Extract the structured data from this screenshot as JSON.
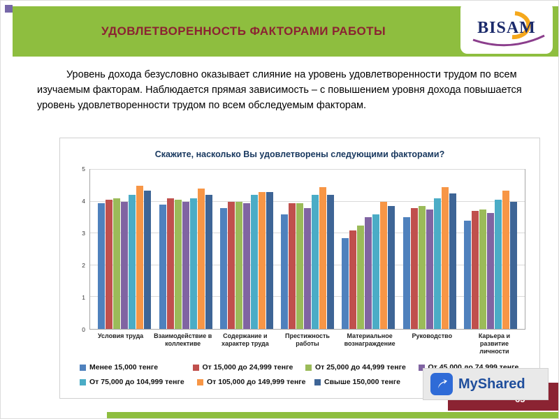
{
  "header": {
    "title": "УДОВЛЕТВОРЕННОСТЬ ФАКТОРАМИ РАБОТЫ",
    "logo_text": "BISAM",
    "bar_color": "#8EBE3F",
    "title_color": "#8B2332"
  },
  "intro": {
    "text": "Уровень дохода безусловно оказывает слияние на уровень удовлетворенности трудом по всем изучаемым факторам. Наблюдается прямая зависимость – с повышением уровня дохода повышается уровень удовлетворенности трудом по всем обследуемым факторам."
  },
  "chart_data": {
    "type": "bar",
    "title": "Скажите, насколько Вы удовлетворены следующими факторами?",
    "categories": [
      "Условия труда",
      "Взаимодействие в коллективе",
      "Содержание и характер труда",
      "Престижность работы",
      "Материальное вознаграждение",
      "Руководство",
      "Карьера и развитие личности"
    ],
    "series": [
      {
        "name": "Менее 15,000 тенге",
        "color": "#4F81BD",
        "values": [
          3.95,
          3.9,
          3.8,
          3.6,
          2.85,
          3.5,
          3.4
        ]
      },
      {
        "name": "От 15,000 до 24,999 тенге",
        "color": "#C0504D",
        "values": [
          4.05,
          4.1,
          4.0,
          3.95,
          3.1,
          3.8,
          3.7
        ]
      },
      {
        "name": "От 25,000 до 44,999 тенге",
        "color": "#9BBB59",
        "values": [
          4.1,
          4.05,
          4.0,
          3.95,
          3.25,
          3.85,
          3.75
        ]
      },
      {
        "name": "От 45,000 до 74,999 тенге",
        "color": "#8064A2",
        "values": [
          4.0,
          4.0,
          3.95,
          3.8,
          3.5,
          3.75,
          3.65
        ]
      },
      {
        "name": "От 75,000 до 104,999 тенге",
        "color": "#4BACC6",
        "values": [
          4.2,
          4.1,
          4.2,
          4.2,
          3.6,
          4.1,
          4.05
        ]
      },
      {
        "name": "От 105,000 до 149,999 тенге",
        "color": "#F79646",
        "values": [
          4.5,
          4.4,
          4.3,
          4.45,
          4.0,
          4.45,
          4.35
        ]
      },
      {
        "name": "Свыше 150,000 тенге",
        "color": "#3E6596",
        "values": [
          4.35,
          4.2,
          4.3,
          4.2,
          3.85,
          4.25,
          4.0
        ]
      }
    ],
    "ylim": [
      0,
      5
    ],
    "yticks": [
      0,
      1,
      2,
      3,
      4,
      5
    ],
    "grid": true,
    "legend_position": "bottom"
  },
  "footer": {
    "page_number": "65",
    "watermark": "MyShared"
  }
}
